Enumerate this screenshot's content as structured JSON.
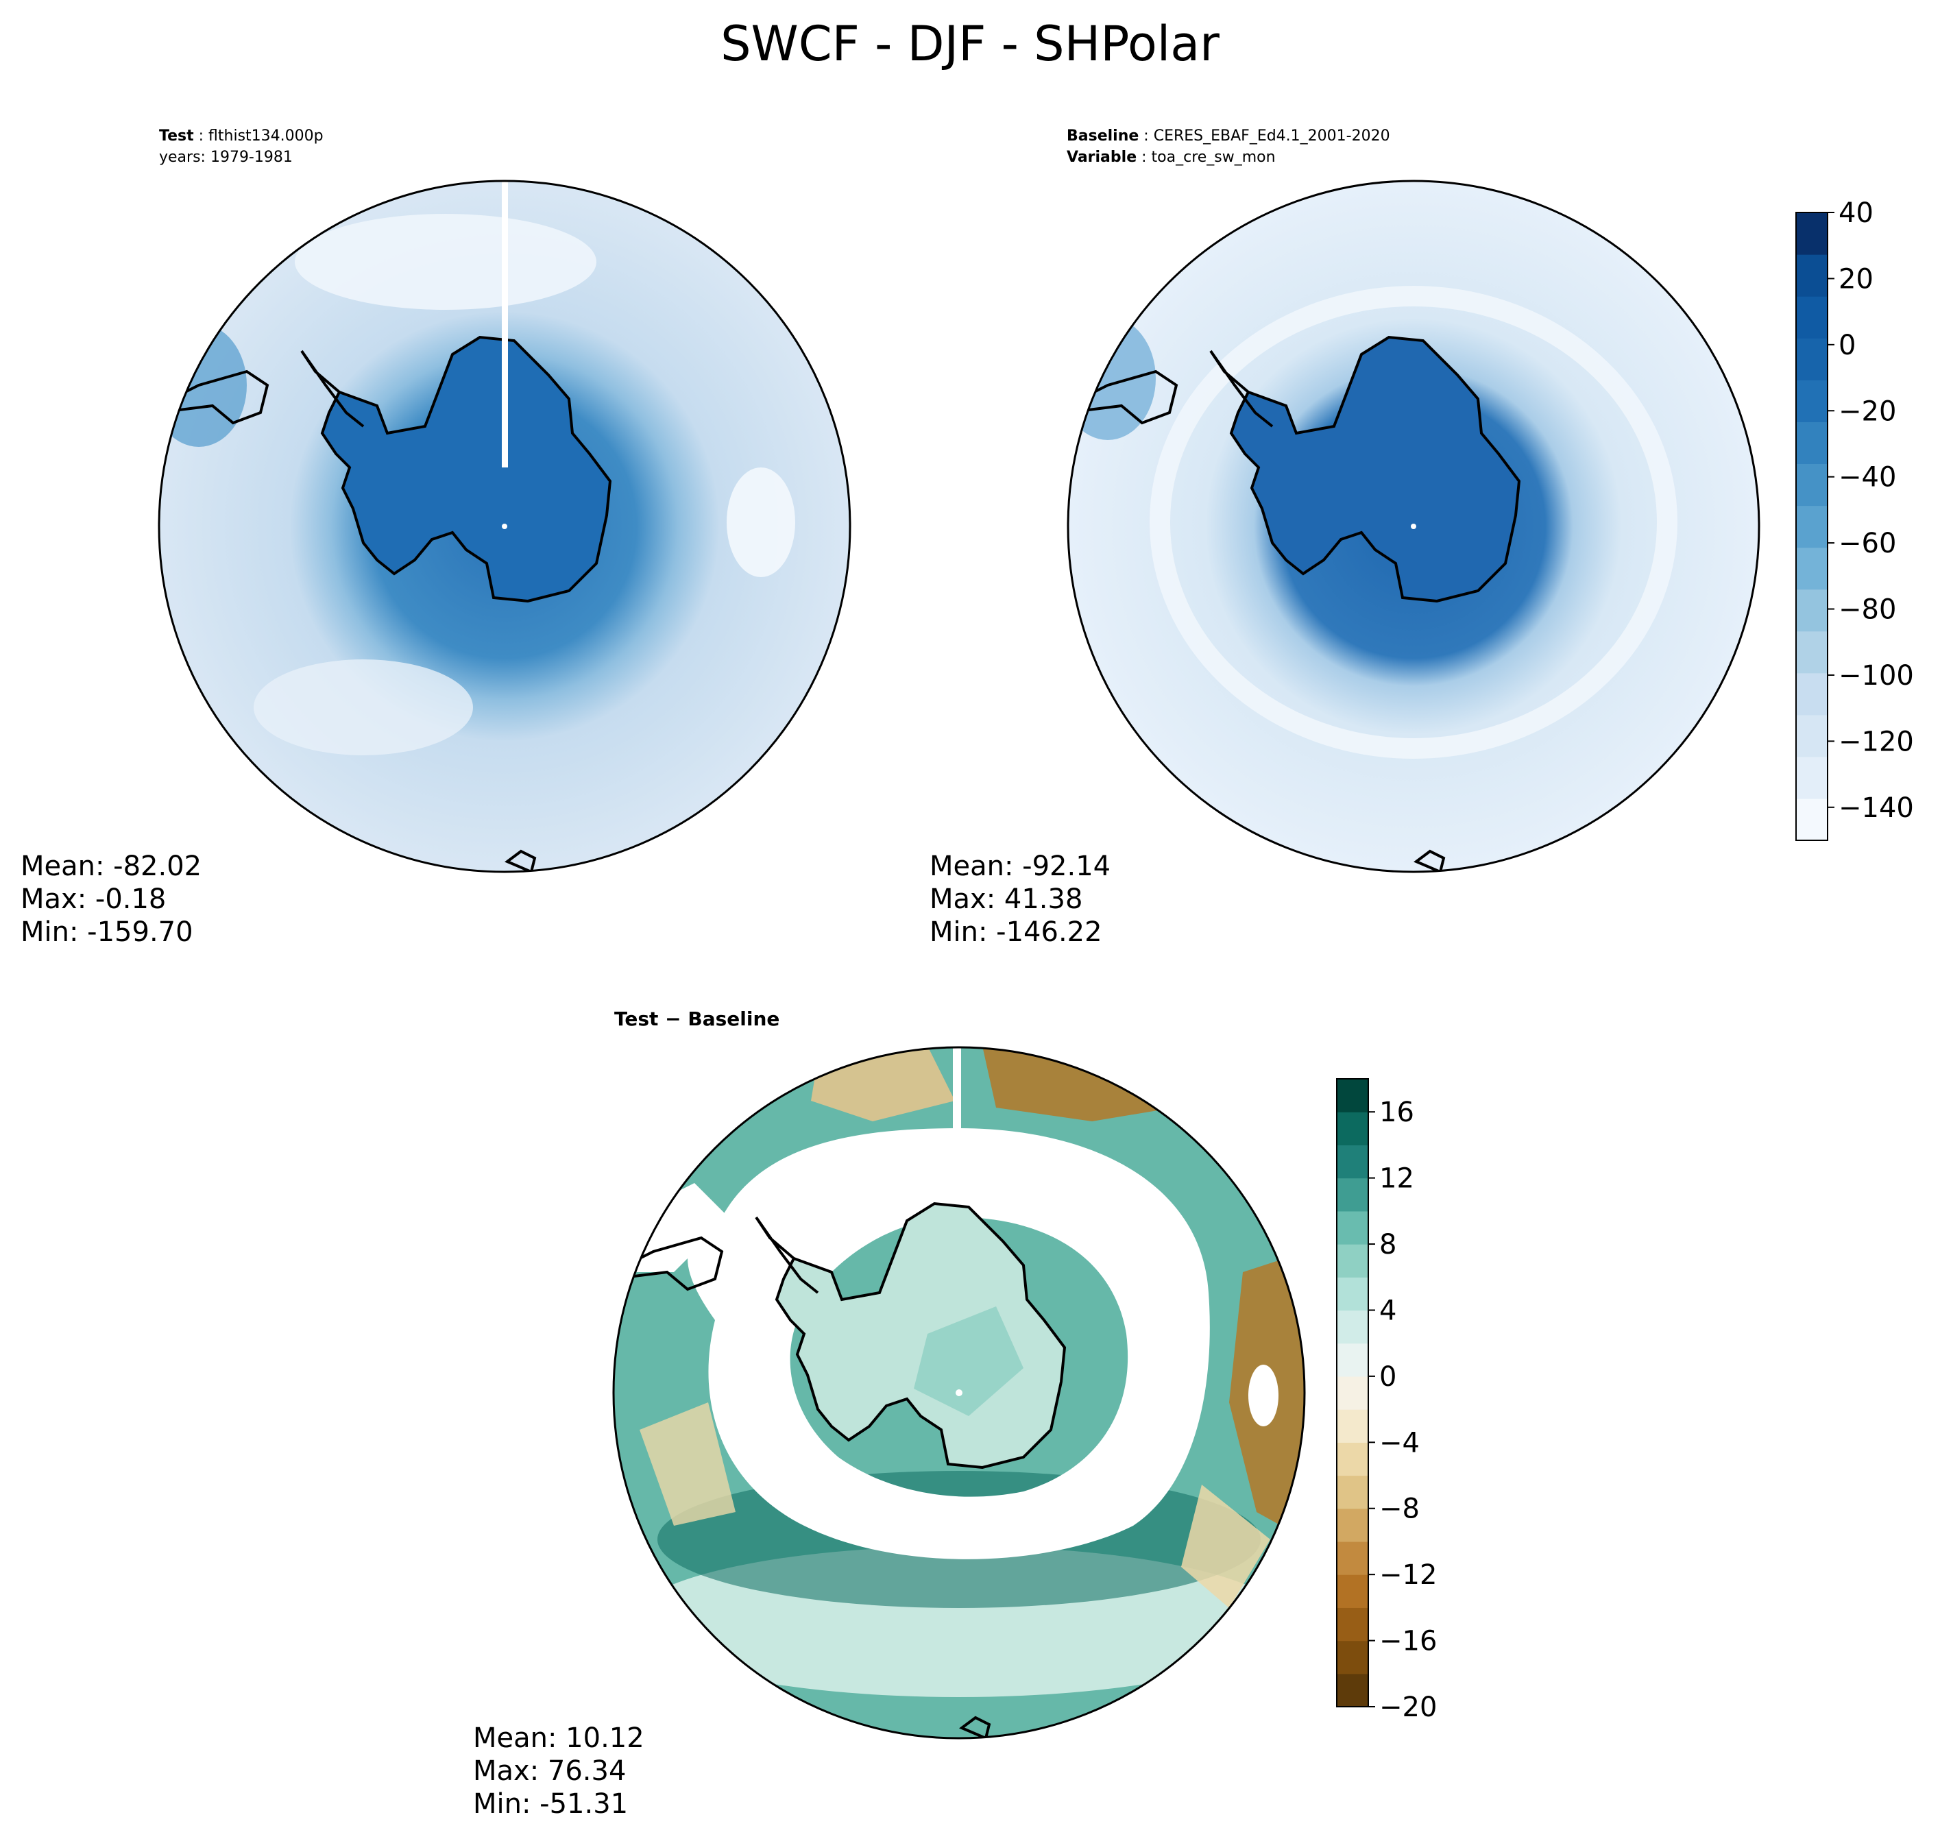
{
  "figure": {
    "title": "SWCF - DJF - SHPolar"
  },
  "test_panel": {
    "label": "Test",
    "name": "flthist134.000p",
    "years": "years: 1979-1981",
    "stats": {
      "mean": "Mean: -82.02",
      "max": "Max: -0.18",
      "min": "Min: -159.70"
    }
  },
  "baseline_panel": {
    "label": "Baseline",
    "name": "CERES_EBAF_Ed4.1_2001-2020",
    "variable_label": "Variable",
    "variable": "toa_cre_sw_mon",
    "stats": {
      "mean": "Mean: -92.14",
      "max": "Max: 41.38",
      "min": "Min: -146.22"
    }
  },
  "diff_panel": {
    "title": "Test − Baseline",
    "stats": {
      "mean": "Mean: 10.12",
      "max": "Max: 76.34",
      "min": "Min: -51.31"
    }
  },
  "colorbar_main": {
    "colormap": "Blues",
    "ticks": [
      "40",
      "20",
      "0",
      "−20",
      "−40",
      "−60",
      "−80",
      "−100",
      "−120",
      "−140"
    ],
    "range": [
      -150,
      40
    ],
    "colors_low_to_high": [
      "#f4f9fe",
      "#e3eef9",
      "#d6e6f4",
      "#c8ddf0",
      "#b0d2e7",
      "#94c4df",
      "#74b3d8",
      "#5aa2cf",
      "#4592c6",
      "#3282be",
      "#2171b5",
      "#1764ab",
      "#105ba4",
      "#0b4e94",
      "#08306b"
    ]
  },
  "colorbar_diff": {
    "colormap": "BrBG",
    "ticks": [
      "16",
      "12",
      "8",
      "4",
      "0",
      "−4",
      "−8",
      "−12",
      "−16",
      "−20"
    ],
    "range": [
      -20,
      18
    ],
    "colors_low_to_high": [
      "#5e3b0a",
      "#7d4d0d",
      "#985e16",
      "#b27224",
      "#c28a3f",
      "#d2a862",
      "#e0c487",
      "#ecd8a8",
      "#f4e9cc",
      "#f6f1e4",
      "#e9f3f1",
      "#d1ece8",
      "#b2e1d9",
      "#8fd0c3",
      "#69bcaf",
      "#3f9d92",
      "#1f8079",
      "#0c6a5f",
      "#01473d"
    ]
  },
  "map_colors": {
    "land_outline": "#000000",
    "test_ocean": "#dbe8f5",
    "test_ring": "#a9cbe6",
    "test_antarctica": "#1f6db4",
    "baseline_ocean": "#e6f0fa",
    "baseline_ring": "#d4e5f3",
    "baseline_antarctica": "#2068b0",
    "diff_teal": "#3d9b8e",
    "diff_light": "#c7e9e1",
    "diff_brown": "#b47828"
  }
}
